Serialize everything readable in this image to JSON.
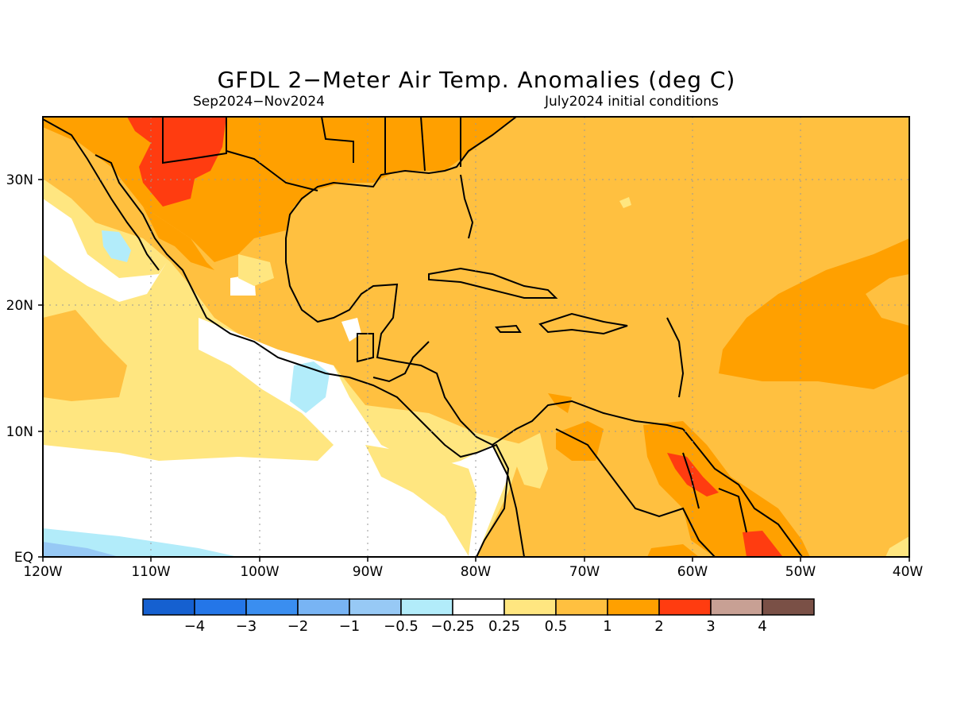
{
  "title": "GFDL 2−Meter Air Temp. Anomalies (deg C)",
  "subtitle_left": "Sep2024−Nov2024",
  "subtitle_right": "July2024 initial conditions",
  "map": {
    "lon_range": [
      -120,
      -40
    ],
    "lat_range": [
      0,
      35
    ],
    "grid": "dotted",
    "x_ticks": [
      "120W",
      "110W",
      "100W",
      "90W",
      "80W",
      "70W",
      "60W",
      "50W",
      "40W"
    ],
    "y_ticks": [
      "EQ",
      "10N",
      "20N",
      "30N"
    ]
  },
  "colorbar": {
    "colors": [
      "#1560d0",
      "#2476e8",
      "#3a8ef0",
      "#78b4f4",
      "#97c9f5",
      "#b2ecfa",
      "#ffffff",
      "#ffe680",
      "#ffc040",
      "#ffa000",
      "#ff3c10",
      "#c8a094",
      "#7a5046"
    ],
    "labels": [
      "−4",
      "−3",
      "−2",
      "−1",
      "−0.5",
      "−0.25",
      "0.25",
      "0.5",
      "1",
      "2",
      "3",
      "4"
    ]
  },
  "colors": {
    "ocean_default": "#ffc040",
    "warm_1": "#ffa000",
    "warm_2": "#ff3c10",
    "mild": "#ffe680",
    "neutral": "#ffffff",
    "cool": "#b2ecfa",
    "cold": "#97c9f5"
  }
}
